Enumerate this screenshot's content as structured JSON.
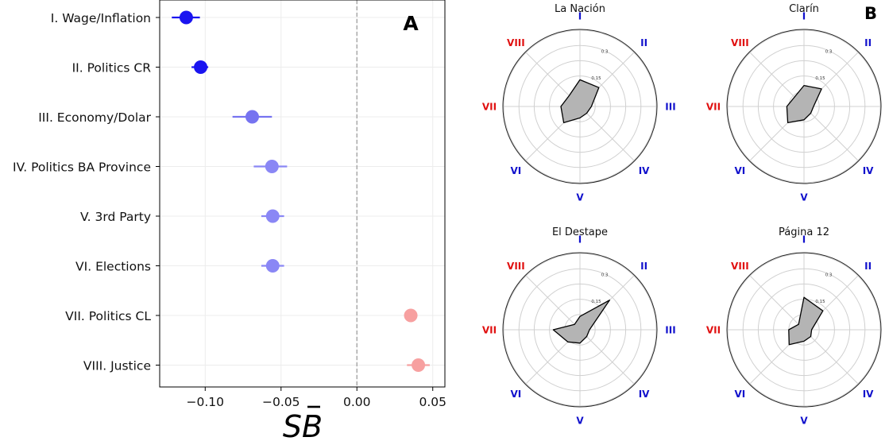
{
  "panel_a": {
    "label": "A",
    "xlabel": "SB̄",
    "xlabel_main": "SB",
    "xticks": [
      "−0.10",
      "−0.05",
      "0.00",
      "0.05"
    ]
  },
  "panel_b": {
    "label": "B",
    "ring_labels": [
      "0.15",
      "0.3"
    ]
  },
  "chart_data": [
    {
      "type": "scatter",
      "title": "",
      "xlabel": "SB̄",
      "ylabel": "",
      "xlim": [
        -0.13,
        0.058
      ],
      "xticks": [
        -0.1,
        -0.05,
        0.0,
        0.05
      ],
      "reference_line": 0.0,
      "grid": true,
      "categories": [
        "I. Wage/Inflation",
        "II. Politics CR",
        "III. Economy/Dolar",
        "IV. Politics BA Province",
        "V. 3rd Party",
        "VI. Elections",
        "VII. Politics CL",
        "VIII. Justice"
      ],
      "values": [
        -0.1125,
        -0.103,
        -0.069,
        -0.056,
        -0.0555,
        -0.0555,
        0.0355,
        0.0405
      ],
      "error_low": [
        -0.122,
        -0.109,
        -0.082,
        -0.068,
        -0.063,
        -0.063,
        0.0335,
        0.033
      ],
      "error_high": [
        -0.1035,
        -0.098,
        -0.056,
        -0.046,
        -0.048,
        -0.048,
        0.0375,
        0.048
      ],
      "colors": [
        "#1a14f0",
        "#1a14f0",
        "#7673f0",
        "#8a87f5",
        "#8a87f5",
        "#8a87f5",
        "#f7a0a0",
        "#f7a0a0"
      ]
    },
    {
      "type": "radar",
      "axes": [
        "I",
        "II",
        "III",
        "IV",
        "V",
        "VI",
        "VII",
        "VIII"
      ],
      "axis_colors": [
        "#1111cc",
        "#1111cc",
        "#1111cc",
        "#1111cc",
        "#1111cc",
        "#1111cc",
        "#e01010",
        "#e01010"
      ],
      "rmax": 0.4,
      "ring_ticks": [
        0.15,
        0.3
      ],
      "fill_color": "#b4b4b4",
      "panels": [
        {
          "title": "La Nación",
          "values": [
            0.14,
            0.14,
            0.06,
            0.05,
            0.06,
            0.12,
            0.1,
            0.08
          ]
        },
        {
          "title": "Clarín",
          "values": [
            0.11,
            0.13,
            0.05,
            0.05,
            0.07,
            0.12,
            0.09,
            0.07
          ]
        },
        {
          "title": "El Destape",
          "values": [
            0.07,
            0.22,
            0.05,
            0.05,
            0.07,
            0.09,
            0.14,
            0.04
          ]
        },
        {
          "title": "Página 12",
          "values": [
            0.17,
            0.14,
            0.04,
            0.05,
            0.06,
            0.11,
            0.08,
            0.04
          ]
        }
      ]
    }
  ]
}
